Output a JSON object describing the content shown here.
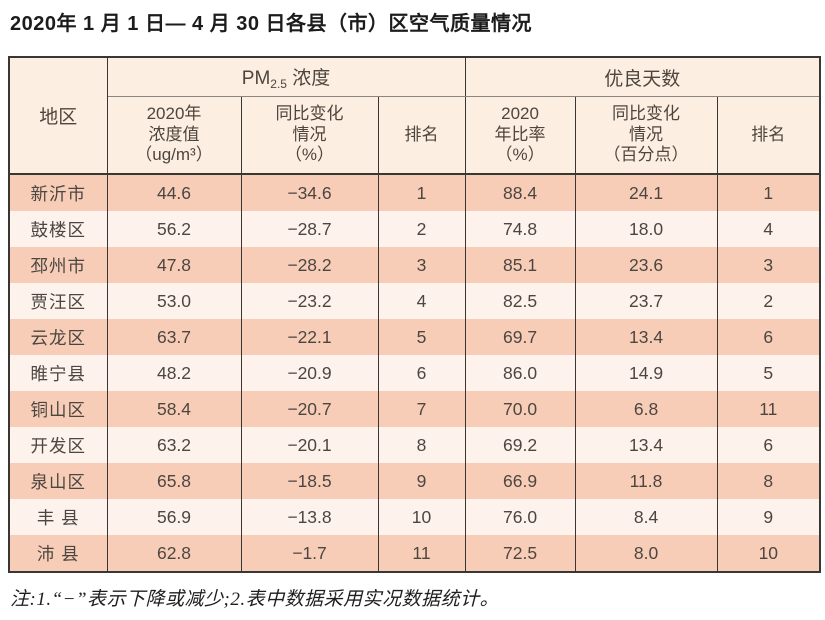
{
  "title": "2020年 1 月 1 日— 4 月 30 日各县（市）区空气质量情况",
  "table": {
    "headers": {
      "region": "地区",
      "pm25_group": {
        "prefix": "PM",
        "sub": "2.5",
        "suffix": " 浓度"
      },
      "good_days_group": "优良天数",
      "sub_headers": {
        "pm_value": "2020年\n浓度值\n（ug/m³）",
        "pm_change": "同比变化\n情况\n（%）",
        "pm_rank": "排名",
        "gd_ratio": "2020\n年比率\n（%）",
        "gd_change": "同比变化\n情况\n（百分点）",
        "gd_rank": "排名"
      }
    },
    "rows": [
      [
        "新沂市",
        "44.6",
        "−34.6",
        "1",
        "88.4",
        "24.1",
        "1"
      ],
      [
        "鼓楼区",
        "56.2",
        "−28.7",
        "2",
        "74.8",
        "18.0",
        "4"
      ],
      [
        "邳州市",
        "47.8",
        "−28.2",
        "3",
        "85.1",
        "23.6",
        "3"
      ],
      [
        "贾汪区",
        "53.0",
        "−23.2",
        "4",
        "82.5",
        "23.7",
        "2"
      ],
      [
        "云龙区",
        "63.7",
        "−22.1",
        "5",
        "69.7",
        "13.4",
        "6"
      ],
      [
        "睢宁县",
        "48.2",
        "−20.9",
        "6",
        "86.0",
        "14.9",
        "5"
      ],
      [
        "铜山区",
        "58.4",
        "−20.7",
        "7",
        "70.0",
        "6.8",
        "11"
      ],
      [
        "开发区",
        "63.2",
        "−20.1",
        "8",
        "69.2",
        "13.4",
        "6"
      ],
      [
        "泉山区",
        "65.8",
        "−18.5",
        "9",
        "66.9",
        "11.8",
        "8"
      ],
      [
        "丰 县",
        "56.9",
        "−13.8",
        "10",
        "76.0",
        "8.4",
        "9"
      ],
      [
        "沛 县",
        "62.8",
        "−1.7",
        "11",
        "72.5",
        "8.0",
        "10"
      ]
    ]
  },
  "note": "注:1.“−”表示下降或减少;2.表中数据采用实况数据统计。",
  "colors": {
    "stripe_salmon": "#f8cdb8",
    "stripe_light": "#fdf2ec",
    "header_bg": "#fcefe2",
    "border_dark": "#3a3633"
  }
}
